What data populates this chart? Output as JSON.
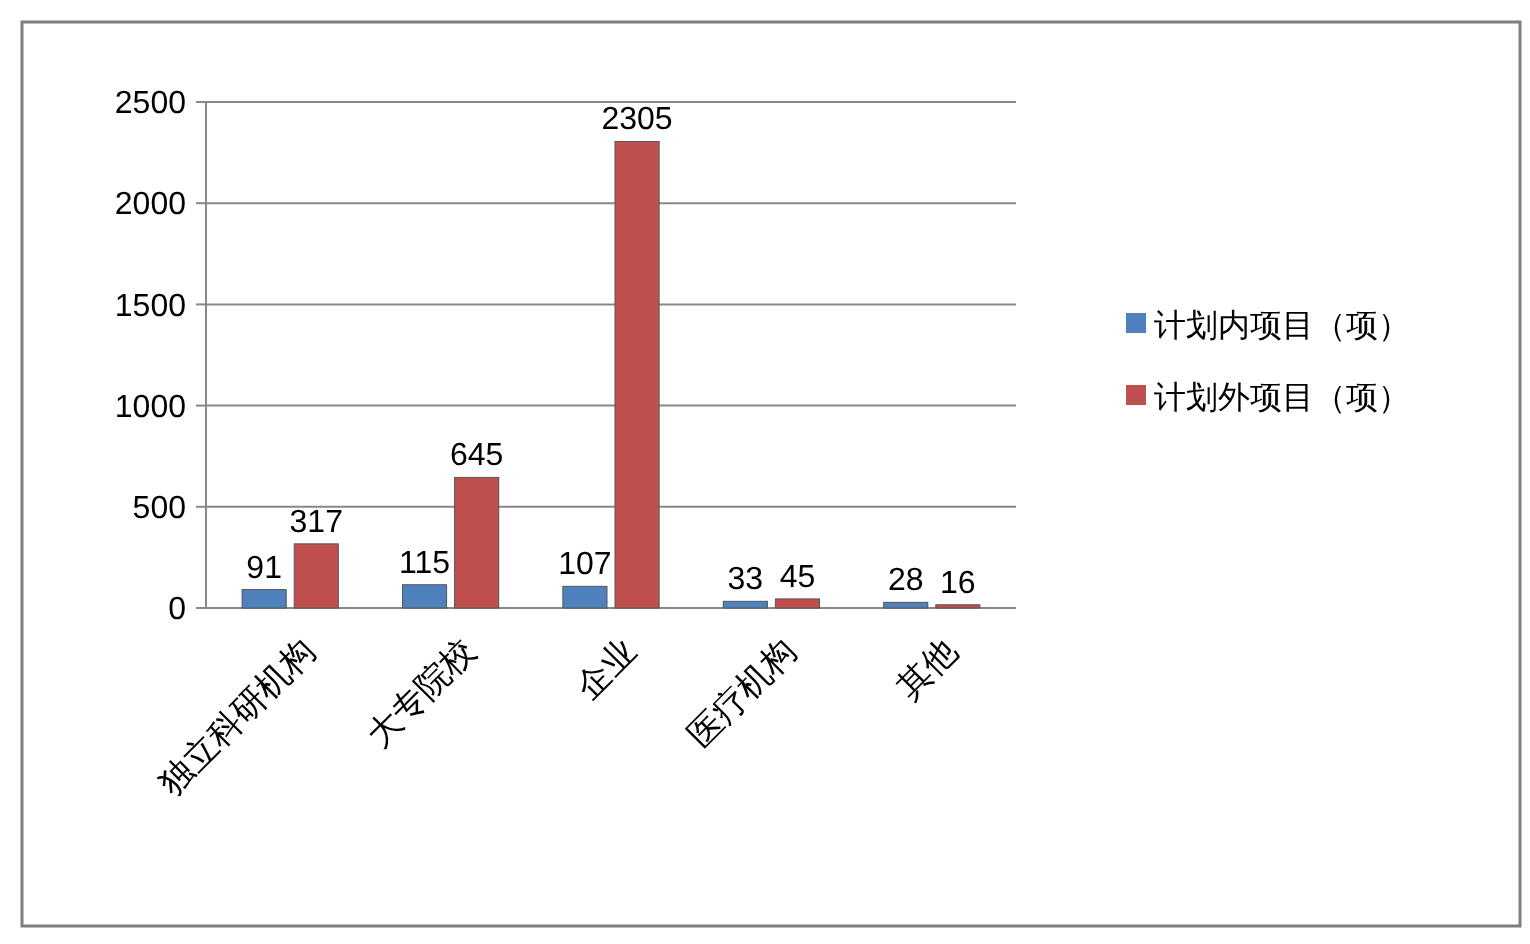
{
  "chart_data": {
    "type": "bar",
    "categories": [
      "独立科研机构",
      "大专院校",
      "企业",
      "医疗机构",
      "其他"
    ],
    "series": [
      {
        "name": "计划内项目（项）",
        "color": "#4f81bd",
        "values": [
          91,
          115,
          107,
          33,
          28
        ]
      },
      {
        "name": "计划外项目（项）",
        "color": "#c0504d",
        "values": [
          317,
          645,
          2305,
          45,
          16
        ]
      }
    ],
    "ylim": [
      0,
      2500
    ],
    "yticks": [
      0,
      500,
      1000,
      1500,
      2000,
      2500
    ],
    "grid": "y",
    "legend": "right",
    "data_labels": true
  }
}
